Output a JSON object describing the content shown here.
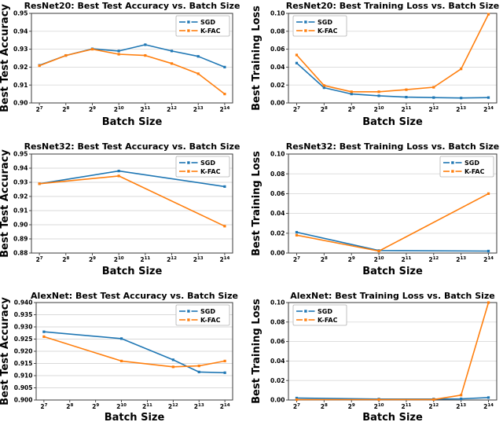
{
  "figure_background": "#ffffff",
  "palette": {
    "sgd_blue": "#1f77b4",
    "kfac_orange": "#ff7f0e",
    "grid_line": "#d9d9d9",
    "axis_spine": "#3a3a3a",
    "text": "#000000",
    "legend_border": "#b3b3b3"
  },
  "legend_entries": [
    "SGD",
    "K-FAC"
  ],
  "chart_data": [
    {
      "type": "line",
      "title": "ResNet20: Best Test Accuracy vs. Batch Size",
      "xlabel": "Batch Size",
      "ylabel": "Best Test Accuracy",
      "x_axis": {
        "base": 2,
        "tick_exponents": [
          7,
          8,
          9,
          10,
          11,
          12,
          13,
          14
        ]
      },
      "ylim": [
        0.9,
        0.95
      ],
      "ytick_step": 0.01,
      "y_decimals": 2,
      "grid": "horizontal",
      "legend_position": "top-right",
      "series": [
        {
          "name": "SGD",
          "color": "#1f77b4",
          "x_exponents": [
            7,
            8,
            9,
            10,
            11,
            12,
            13,
            14
          ],
          "values": [
            0.921,
            0.9265,
            0.9302,
            0.929,
            0.9325,
            0.929,
            0.926,
            0.92
          ]
        },
        {
          "name": "K-FAC",
          "color": "#ff7f0e",
          "x_exponents": [
            7,
            8,
            9,
            10,
            11,
            12,
            13,
            14
          ],
          "values": [
            0.9208,
            0.9265,
            0.93,
            0.9272,
            0.9265,
            0.922,
            0.9163,
            0.905
          ]
        }
      ]
    },
    {
      "type": "line",
      "title": "ResNet20: Best Training Loss vs. Batch Size",
      "xlabel": "Batch Size",
      "ylabel": "Best Training Loss",
      "x_axis": {
        "base": 2,
        "tick_exponents": [
          7,
          8,
          9,
          10,
          11,
          12,
          13,
          14
        ]
      },
      "ylim": [
        0.0,
        0.1
      ],
      "ytick_step": 0.02,
      "y_decimals": 2,
      "grid": "horizontal",
      "legend_position": "top-left",
      "series": [
        {
          "name": "SGD",
          "color": "#1f77b4",
          "x_exponents": [
            7,
            8,
            9,
            10,
            11,
            12,
            13,
            14
          ],
          "values": [
            0.0445,
            0.017,
            0.01,
            0.008,
            0.0065,
            0.006,
            0.0055,
            0.006
          ]
        },
        {
          "name": "K-FAC",
          "color": "#ff7f0e",
          "x_exponents": [
            7,
            8,
            9,
            10,
            11,
            12,
            13,
            14
          ],
          "values": [
            0.0535,
            0.0195,
            0.0125,
            0.0125,
            0.0148,
            0.0175,
            0.038,
            0.099
          ]
        }
      ]
    },
    {
      "type": "line",
      "title": "ResNet32: Best Test Accuracy vs. Batch Size",
      "xlabel": "Batch Size",
      "ylabel": "Best Test Accuracy",
      "x_axis": {
        "base": 2,
        "tick_exponents": [
          7,
          8,
          9,
          10,
          11,
          12,
          13,
          14
        ]
      },
      "ylim": [
        0.88,
        0.95
      ],
      "ytick_step": 0.01,
      "y_decimals": 2,
      "grid": "horizontal",
      "legend_position": "top-right",
      "series": [
        {
          "name": "SGD",
          "color": "#1f77b4",
          "x_exponents": [
            7,
            10,
            14
          ],
          "values": [
            0.929,
            0.938,
            0.927
          ]
        },
        {
          "name": "K-FAC",
          "color": "#ff7f0e",
          "x_exponents": [
            7,
            10,
            14
          ],
          "values": [
            0.929,
            0.9345,
            0.899
          ]
        }
      ]
    },
    {
      "type": "line",
      "title": "ResNet32: Best Training Loss vs. Batch Size",
      "xlabel": "Batch Size",
      "ylabel": "Best Training Loss",
      "x_axis": {
        "base": 2,
        "tick_exponents": [
          7,
          8,
          9,
          10,
          11,
          12,
          13,
          14
        ]
      },
      "ylim": [
        0.0,
        0.1
      ],
      "ytick_step": 0.02,
      "y_decimals": 2,
      "grid": "horizontal",
      "legend_position": "top-right",
      "series": [
        {
          "name": "SGD",
          "color": "#1f77b4",
          "x_exponents": [
            7,
            10,
            14
          ],
          "values": [
            0.021,
            0.0025,
            0.002
          ]
        },
        {
          "name": "K-FAC",
          "color": "#ff7f0e",
          "x_exponents": [
            7,
            10,
            14
          ],
          "values": [
            0.018,
            0.002,
            0.06
          ]
        }
      ]
    },
    {
      "type": "line",
      "title": "AlexNet: Best Test Accuracy vs. Batch Size",
      "xlabel": "Batch Size",
      "ylabel": "Best Test Accuracy",
      "x_axis": {
        "base": 2,
        "tick_exponents": [
          7,
          8,
          9,
          10,
          11,
          12,
          13,
          14
        ]
      },
      "ylim": [
        0.9,
        0.94
      ],
      "ytick_step": 0.005,
      "y_decimals": 3,
      "grid": "horizontal",
      "legend_position": "top-right",
      "series": [
        {
          "name": "SGD",
          "color": "#1f77b4",
          "x_exponents": [
            7,
            10,
            12,
            13,
            14
          ],
          "values": [
            0.928,
            0.9252,
            0.9165,
            0.9115,
            0.9112
          ]
        },
        {
          "name": "K-FAC",
          "color": "#ff7f0e",
          "x_exponents": [
            7,
            10,
            12,
            13,
            14
          ],
          "values": [
            0.926,
            0.916,
            0.9136,
            0.914,
            0.916
          ]
        }
      ]
    },
    {
      "type": "line",
      "title": "AlexNet: Best Training Loss vs. Batch Size",
      "xlabel": "Batch Size",
      "ylabel": "Best Training Loss",
      "x_axis": {
        "base": 2,
        "tick_exponents": [
          7,
          8,
          9,
          10,
          11,
          12,
          13,
          14
        ]
      },
      "ylim": [
        0.0,
        0.1
      ],
      "ytick_step": 0.02,
      "y_decimals": 2,
      "grid": "horizontal",
      "legend_position": "top-left",
      "series": [
        {
          "name": "SGD",
          "color": "#1f77b4",
          "x_exponents": [
            7,
            10,
            12,
            13,
            14
          ],
          "values": [
            0.002,
            0.001,
            0.001,
            0.0012,
            0.0025
          ]
        },
        {
          "name": "K-FAC",
          "color": "#ff7f0e",
          "x_exponents": [
            7,
            10,
            12,
            13,
            14
          ],
          "values": [
            0.0004,
            0.0004,
            0.0005,
            0.005,
            0.103
          ]
        }
      ]
    }
  ]
}
